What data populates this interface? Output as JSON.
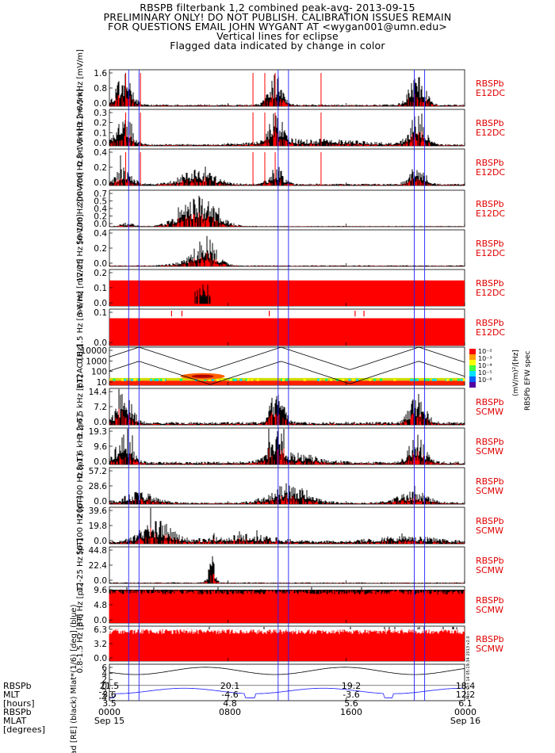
{
  "header": {
    "line1": "RBSPB filterbank 1,2 combined peak-avg- 2013-09-15",
    "line2": "PRELIMINARY ONLY! DO NOT PUBLISH. CALIBRATION ISSUES REMAIN",
    "line3": "FOR QUESTIONS EMAIL JOHN WYGANT AT <wygan001@umn.edu>",
    "line4": "Vertical lines for eclipse",
    "line5": "Flagged data indicated by change in color"
  },
  "footer": {
    "row_labels": [
      "RBSPb",
      "MLT",
      "[hours]",
      "RBSPb",
      "MLAT",
      "[degrees]"
    ],
    "columns": [
      {
        "rows": [
          "21.5",
          "3.6",
          "3.5",
          "0000",
          "Sep 15"
        ]
      },
      {
        "rows": [
          "20.1",
          "-4.6",
          "4.8",
          "0800",
          ""
        ]
      },
      {
        "rows": [
          "19.2",
          "-3.6",
          "5.6",
          "1600",
          ""
        ]
      },
      {
        "rows": [
          "18.4",
          "12.2",
          "6.1",
          "0000",
          "Sep 16"
        ]
      }
    ],
    "vertical_stamp": "Mon Oct 14 05:19:34 2013 v2.0"
  },
  "spec_colorbar": {
    "ticks": [
      "10⁻²",
      "10⁻³",
      "10⁻⁴",
      "10⁻⁵",
      "10⁻⁶"
    ],
    "label1": "(mV/m)²/[Hz]",
    "label2": "RBSPb EFW spec"
  },
  "chart_data": [
    {
      "type": "bar",
      "ylabel": "3.2-6.5 kHz [mV/m]",
      "yticks": [
        "1.6",
        "0.8",
        "0.0"
      ],
      "ylim": [
        0,
        1.6
      ],
      "series_label": "RBSPb",
      "instrument": "E12DC"
    },
    {
      "type": "bar",
      "ylabel": "0.8-1.6 kHz [mV/m]",
      "yticks": [
        "0.3",
        "0.2",
        "0.1",
        "0.0"
      ],
      "ylim": [
        0,
        0.3
      ],
      "series_label": "RBSPb",
      "instrument": "E12DC"
    },
    {
      "type": "bar",
      "ylabel": "200-400 Hz [mV/m]",
      "yticks": [
        "0.4",
        "0.2",
        "0.0"
      ],
      "ylim": [
        0,
        0.4
      ],
      "series_label": "RBSPb",
      "instrument": "E12DC"
    },
    {
      "type": "bar",
      "ylabel": "50-100 Hz [mV/m]",
      "yticks": [
        "0.7",
        "0.5",
        "0.4",
        "0.2",
        "0.0"
      ],
      "ylim": [
        0,
        0.7
      ],
      "series_label": "RBSPb",
      "instrument": "E12DC"
    },
    {
      "type": "bar",
      "ylabel": "12-25 Hz [mV/m]",
      "yticks": [
        "0.4",
        "0.2",
        "0.0"
      ],
      "ylim": [
        0,
        0.4
      ],
      "series_label": "RBSPb",
      "instrument": "E12DC"
    },
    {
      "type": "bar",
      "ylabel": "3-6 Hz [mV/m]",
      "yticks": [
        "0.2",
        "0.1",
        "0.0"
      ],
      "ylim": [
        0,
        0.2
      ],
      "series_label": "RBSPb",
      "instrument": "E12DC"
    },
    {
      "type": "bar",
      "ylabel": "0.8-1.5 Hz [mV/m]",
      "yticks": [
        "0.1",
        "0.0"
      ],
      "ylim": [
        0,
        0.1
      ],
      "series_label": "RBSPb",
      "instrument": "E12DC"
    },
    {
      "type": "heatmap",
      "ylabel": "E12AC [Hz]",
      "yticks": [
        "10000",
        "1000",
        "100",
        "10"
      ],
      "ylim": [
        3,
        10000
      ],
      "log_y": true
    },
    {
      "type": "bar",
      "ylabel": "3.2-6.5 kHz [pT]",
      "yticks": [
        "14.4",
        "7.2",
        "0.0"
      ],
      "ylim": [
        0,
        14.4
      ],
      "series_label": "RBSPb",
      "instrument": "SCMW"
    },
    {
      "type": "bar",
      "ylabel": "0.8-1.6 kHz [pT]",
      "yticks": [
        "19.3",
        "9.6",
        "0.0"
      ],
      "ylim": [
        0,
        19.3
      ],
      "series_label": "RBSPb",
      "instrument": "SCMW"
    },
    {
      "type": "bar",
      "ylabel": "200-400 Hz [pT]",
      "yticks": [
        "57.2",
        "28.6",
        "0.0"
      ],
      "ylim": [
        0,
        57.2
      ],
      "series_label": "RBSPb",
      "instrument": "SCMW"
    },
    {
      "type": "bar",
      "ylabel": "50-100 Hz [pT]",
      "yticks": [
        "39.6",
        "19.8",
        "0.0"
      ],
      "ylim": [
        0,
        39.6
      ],
      "series_label": "RBSPb",
      "instrument": "SCMW"
    },
    {
      "type": "bar",
      "ylabel": "12-25 Hz [pT]",
      "yticks": [
        "44.8",
        "22.4",
        "0.0"
      ],
      "ylim": [
        0,
        44.8
      ],
      "series_label": "RBSPb",
      "instrument": "SCMW"
    },
    {
      "type": "bar",
      "ylabel": "3-6 Hz [pT]",
      "yticks": [
        "9.6",
        "4.8",
        "0.0"
      ],
      "ylim": [
        0,
        9.6
      ],
      "series_label": "RBSPb",
      "instrument": "SCMW"
    },
    {
      "type": "bar",
      "ylabel": "0.8-1.5 Hz [pT]",
      "yticks": [
        "6.3",
        "3.2",
        "0.0"
      ],
      "ylim": [
        0,
        6.3
      ],
      "series_label": "RBSPb",
      "instrument": "SCMW"
    },
    {
      "type": "line",
      "ylabel": "Rad [RE] (black) Mlat*(1/6) [deg] (blue)",
      "yticks": [
        "6",
        "4",
        "2",
        "0",
        "-2",
        "-4"
      ],
      "ylim": [
        -5,
        7
      ]
    }
  ],
  "eclipse_lines_hours": [
    1.3,
    2.0,
    11.4,
    12.1,
    20.6,
    21.3
  ]
}
